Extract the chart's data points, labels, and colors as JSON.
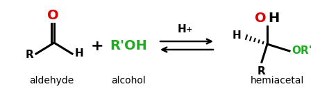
{
  "bg_color": "#ffffff",
  "black": "#000000",
  "red": "#dd0000",
  "green": "#22aa22",
  "aldehyde_label": "aldehyde",
  "alcohol_label": "alcohol",
  "hemiacetal_label": "hemiacetal",
  "figsize": [
    4.74,
    1.32
  ],
  "dpi": 100
}
